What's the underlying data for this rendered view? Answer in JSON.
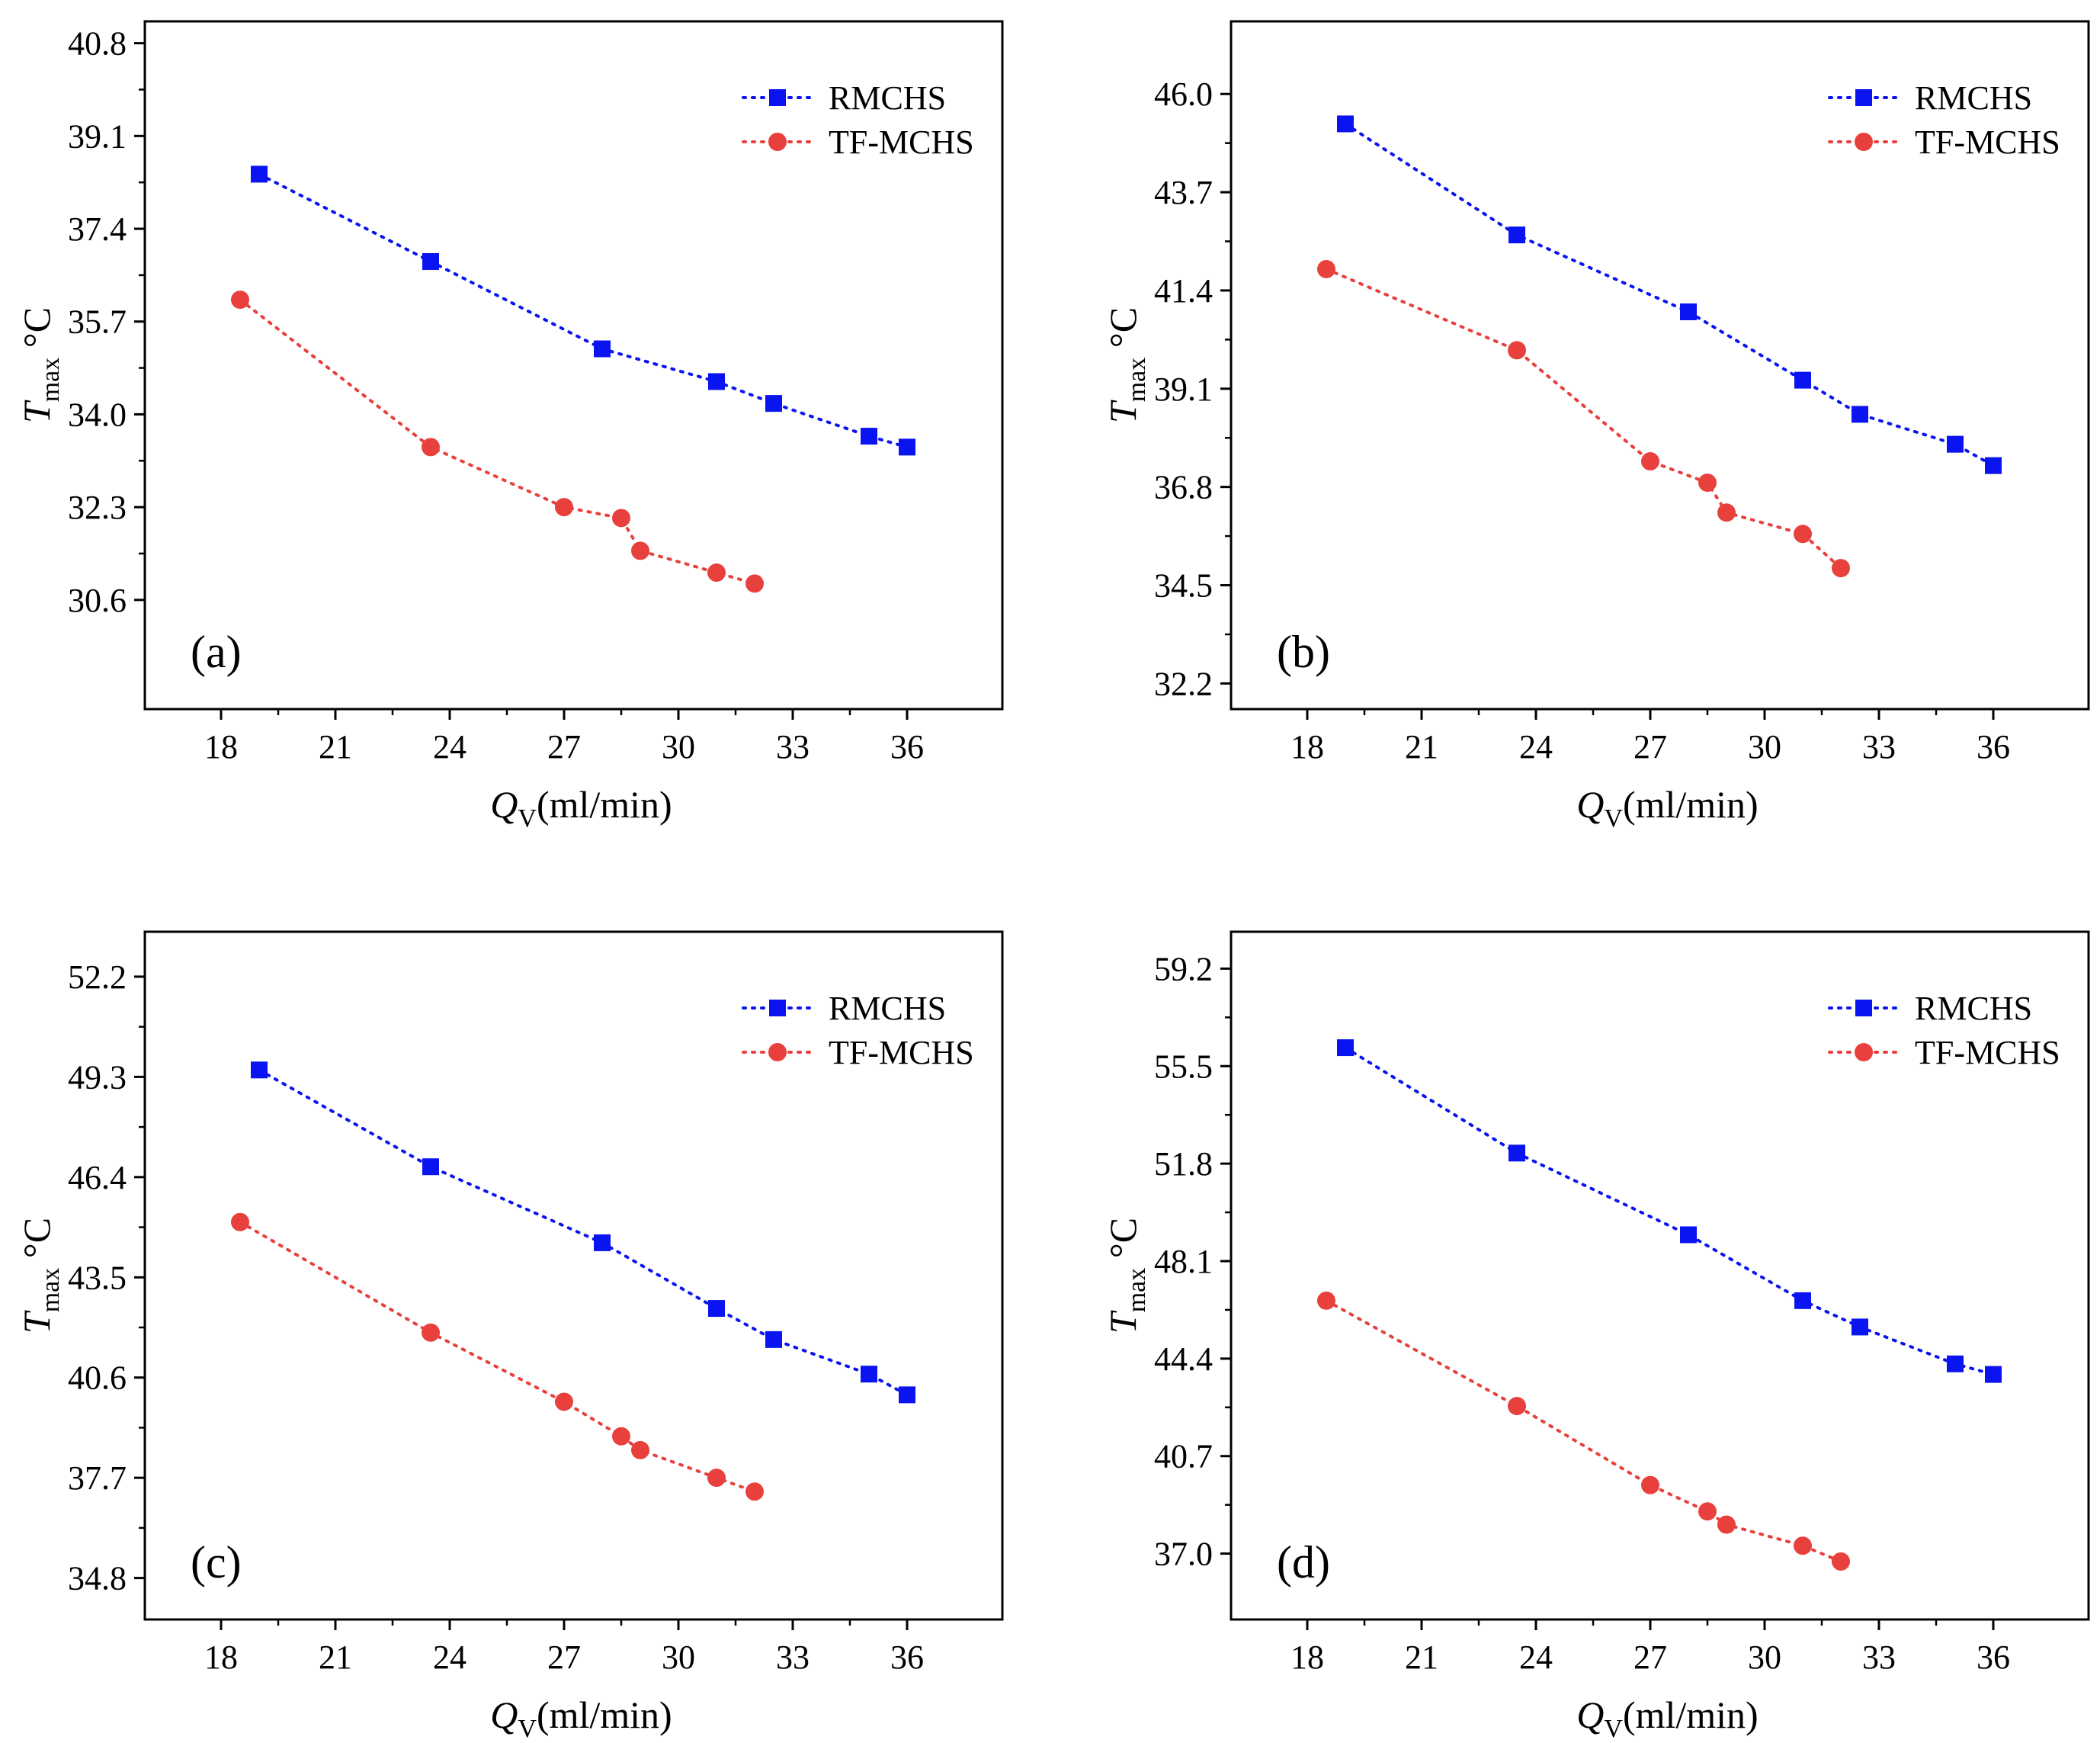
{
  "figure": {
    "colors": {
      "rmchs": "#0a14f0",
      "tfmchs": "#e8403c",
      "axis": "#000000"
    }
  },
  "chart_data": [
    {
      "type": "line",
      "panel_label": "(a)",
      "xlabel": {
        "main": "Q",
        "sub": "V",
        "rest": "(ml/min)"
      },
      "ylabel": {
        "main": "T",
        "sub": "max",
        "rest": " °C"
      },
      "xlim": [
        16,
        38.5
      ],
      "ylim": [
        28.6,
        41.2
      ],
      "x_ticks": [
        18,
        21,
        24,
        27,
        30,
        33,
        36
      ],
      "x_tick_labels": [
        "18",
        "21",
        "24",
        "27",
        "30",
        "33",
        "36"
      ],
      "y_ticks": [
        30.6,
        32.3,
        34.0,
        35.7,
        37.4,
        39.1,
        40.8
      ],
      "y_tick_labels": [
        "30.6",
        "32.3",
        "34.0",
        "35.7",
        "37.4",
        "39.1",
        "40.8"
      ],
      "legend": [
        "RMCHS",
        "TF-MCHS"
      ],
      "series": [
        {
          "name": "RMCHS",
          "marker": "square",
          "x": [
            19,
            23.5,
            28,
            31,
            32.5,
            35,
            36
          ],
          "y": [
            38.4,
            36.8,
            35.2,
            34.6,
            34.2,
            33.6,
            33.4
          ]
        },
        {
          "name": "TF-MCHS",
          "marker": "circle",
          "x": [
            18.5,
            23.5,
            27,
            28.5,
            29,
            31,
            32
          ],
          "y": [
            36.1,
            33.4,
            32.3,
            32.1,
            31.5,
            31.1,
            30.9
          ]
        }
      ]
    },
    {
      "type": "line",
      "panel_label": "(b)",
      "xlabel": {
        "main": "Q",
        "sub": "V",
        "rest": "(ml/min)"
      },
      "ylabel": {
        "main": "T",
        "sub": "max",
        "rest": " °C"
      },
      "xlim": [
        16,
        38.5
      ],
      "ylim": [
        31.6,
        47.7
      ],
      "x_ticks": [
        18,
        21,
        24,
        27,
        30,
        33,
        36
      ],
      "x_tick_labels": [
        "18",
        "21",
        "24",
        "27",
        "30",
        "33",
        "36"
      ],
      "y_ticks": [
        32.2,
        34.5,
        36.8,
        39.1,
        41.4,
        43.7,
        46.0
      ],
      "y_tick_labels": [
        "32.2",
        "34.5",
        "36.8",
        "39.1",
        "41.4",
        "43.7",
        "46.0"
      ],
      "legend": [
        "RMCHS",
        "TF-MCHS"
      ],
      "series": [
        {
          "name": "RMCHS",
          "marker": "square",
          "x": [
            19,
            23.5,
            28,
            31,
            32.5,
            35,
            36
          ],
          "y": [
            45.3,
            42.7,
            40.9,
            39.3,
            38.5,
            37.8,
            37.3
          ]
        },
        {
          "name": "TF-MCHS",
          "marker": "circle",
          "x": [
            18.5,
            23.5,
            27,
            28.5,
            29,
            31,
            32
          ],
          "y": [
            41.9,
            40.0,
            37.4,
            36.9,
            36.2,
            35.7,
            34.9
          ]
        }
      ]
    },
    {
      "type": "line",
      "panel_label": "(c)",
      "xlabel": {
        "main": "Q",
        "sub": "V",
        "rest": "(ml/min)"
      },
      "ylabel": {
        "main": "T",
        "sub": "max",
        "rest": " °C"
      },
      "xlim": [
        16,
        38.5
      ],
      "ylim": [
        33.6,
        53.5
      ],
      "x_ticks": [
        18,
        21,
        24,
        27,
        30,
        33,
        36
      ],
      "x_tick_labels": [
        "18",
        "21",
        "24",
        "27",
        "30",
        "33",
        "36"
      ],
      "y_ticks": [
        34.8,
        37.7,
        40.6,
        43.5,
        46.4,
        49.3,
        52.2
      ],
      "y_tick_labels": [
        "34.8",
        "37.7",
        "40.6",
        "43.5",
        "46.4",
        "49.3",
        "52.2"
      ],
      "legend": [
        "RMCHS",
        "TF-MCHS"
      ],
      "series": [
        {
          "name": "RMCHS",
          "marker": "square",
          "x": [
            19,
            23.5,
            28,
            31,
            32.5,
            35,
            36
          ],
          "y": [
            49.5,
            46.7,
            44.5,
            42.6,
            41.7,
            40.7,
            40.1
          ]
        },
        {
          "name": "TF-MCHS",
          "marker": "circle",
          "x": [
            18.5,
            23.5,
            27,
            28.5,
            29,
            31,
            32
          ],
          "y": [
            45.1,
            41.9,
            39.9,
            38.9,
            38.5,
            37.7,
            37.3
          ]
        }
      ]
    },
    {
      "type": "line",
      "panel_label": "(d)",
      "xlabel": {
        "main": "Q",
        "sub": "V",
        "rest": "(ml/min)"
      },
      "ylabel": {
        "main": "T",
        "sub": "max",
        "rest": " °C"
      },
      "xlim": [
        16,
        38.5
      ],
      "ylim": [
        34.5,
        60.6
      ],
      "x_ticks": [
        18,
        21,
        24,
        27,
        30,
        33,
        36
      ],
      "x_tick_labels": [
        "18",
        "21",
        "24",
        "27",
        "30",
        "33",
        "36"
      ],
      "y_ticks": [
        37.0,
        40.7,
        44.4,
        48.1,
        51.8,
        55.5,
        59.2
      ],
      "y_tick_labels": [
        "37.0",
        "40.7",
        "44.4",
        "48.1",
        "51.8",
        "55.5",
        "59.2"
      ],
      "legend": [
        "RMCHS",
        "TF-MCHS"
      ],
      "series": [
        {
          "name": "RMCHS",
          "marker": "square",
          "x": [
            19,
            23.5,
            28,
            31,
            32.5,
            35,
            36
          ],
          "y": [
            56.2,
            52.2,
            49.1,
            46.6,
            45.6,
            44.2,
            43.8
          ]
        },
        {
          "name": "TF-MCHS",
          "marker": "circle",
          "x": [
            18.5,
            23.5,
            27,
            28.5,
            29,
            31,
            32
          ],
          "y": [
            46.6,
            42.6,
            39.6,
            38.6,
            38.1,
            37.3,
            36.7
          ]
        }
      ]
    }
  ]
}
